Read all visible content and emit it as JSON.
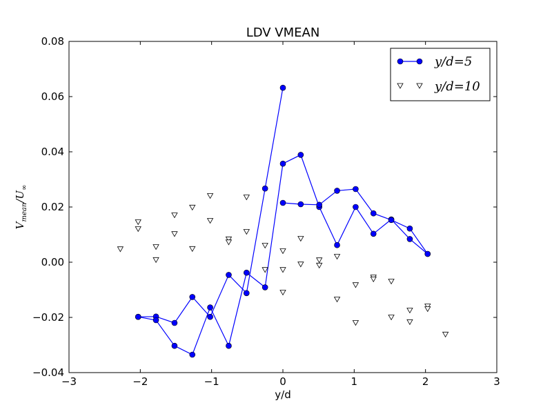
{
  "chart_data": {
    "type": "scatter",
    "title": "LDV VMEAN",
    "xlabel": "y/d",
    "ylabel": "V_mean/U_∞",
    "ylabel_parts": {
      "main": "V",
      "sub": "mean",
      "mid": "/U",
      "sub2": "∞"
    },
    "xlim": [
      -3,
      3
    ],
    "ylim": [
      -0.04,
      0.08
    ],
    "xticks": [
      "−3",
      "−2",
      "−1",
      "0",
      "1",
      "2",
      "3"
    ],
    "yticks": [
      "−0.04",
      "−0.02",
      "0.00",
      "0.02",
      "0.04",
      "0.06",
      "0.08"
    ],
    "grid": false,
    "legend_placement": "top-right",
    "series": [
      {
        "name": "y/d=5",
        "style": "line-marker",
        "marker": "circle",
        "color": "#0000ff",
        "segments": [
          [
            [
              -2.03,
              -0.0198
            ],
            [
              -1.78,
              -0.0197
            ],
            [
              -1.52,
              -0.022
            ],
            [
              -1.27,
              -0.0126
            ],
            [
              -1.02,
              -0.0198
            ],
            [
              -0.76,
              -0.0046
            ],
            [
              -0.51,
              -0.0112
            ],
            [
              -0.25,
              0.0267
            ],
            [
              0.0,
              0.0632
            ]
          ],
          [
            [
              -2.03,
              -0.0198
            ],
            [
              -1.78,
              -0.021
            ],
            [
              -1.52,
              -0.0303
            ],
            [
              -1.27,
              -0.0335
            ],
            [
              -1.02,
              -0.0164
            ],
            [
              -0.76,
              -0.0303
            ],
            [
              -0.51,
              -0.0038
            ],
            [
              -0.25,
              -0.0091
            ],
            [
              0.0,
              0.0357
            ],
            [
              0.25,
              0.0389
            ],
            [
              0.51,
              0.02
            ],
            [
              0.76,
              0.0062
            ],
            [
              1.02,
              0.02
            ],
            [
              1.27,
              0.0103
            ],
            [
              1.52,
              0.0155
            ],
            [
              1.78,
              0.0084
            ],
            [
              2.03,
              0.003
            ]
          ],
          [
            [
              0.0,
              0.0215
            ],
            [
              0.25,
              0.021
            ],
            [
              0.51,
              0.0208
            ],
            [
              0.76,
              0.0259
            ],
            [
              1.02,
              0.0265
            ],
            [
              1.27,
              0.0177
            ],
            [
              1.52,
              0.0153
            ],
            [
              1.78,
              0.0122
            ],
            [
              2.03,
              0.003
            ]
          ]
        ]
      },
      {
        "name": "y/d=10",
        "style": "marker-only",
        "marker": "triangle-down",
        "color": "#ffffff",
        "points": [
          [
            -2.28,
            0.0047
          ],
          [
            -2.03,
            0.0145
          ],
          [
            -2.03,
            0.012
          ],
          [
            -1.78,
            0.0055
          ],
          [
            -1.78,
            0.0008
          ],
          [
            -1.52,
            0.017
          ],
          [
            -1.52,
            0.0102
          ],
          [
            -1.27,
            0.0198
          ],
          [
            -1.27,
            0.0048
          ],
          [
            -1.02,
            0.024
          ],
          [
            -1.02,
            0.015
          ],
          [
            -0.76,
            0.0083
          ],
          [
            -0.76,
            0.0072
          ],
          [
            -0.51,
            0.0235
          ],
          [
            -0.51,
            0.011
          ],
          [
            -0.25,
            0.006
          ],
          [
            -0.25,
            -0.0028
          ],
          [
            0.0,
            0.004
          ],
          [
            0.0,
            -0.0028
          ],
          [
            0.0,
            -0.011
          ],
          [
            0.25,
            0.0085
          ],
          [
            0.25,
            -0.0008
          ],
          [
            0.51,
            0.0007
          ],
          [
            0.51,
            -0.0012
          ],
          [
            0.76,
            0.002
          ],
          [
            0.76,
            -0.0135
          ],
          [
            1.02,
            -0.0083
          ],
          [
            1.02,
            -0.022
          ],
          [
            1.27,
            -0.0055
          ],
          [
            1.27,
            -0.0062
          ],
          [
            1.52,
            -0.007
          ],
          [
            1.52,
            -0.02
          ],
          [
            1.78,
            -0.0175
          ],
          [
            1.78,
            -0.0217
          ],
          [
            2.03,
            -0.016
          ],
          [
            2.03,
            -0.017
          ],
          [
            2.28,
            -0.0262
          ]
        ]
      }
    ]
  }
}
